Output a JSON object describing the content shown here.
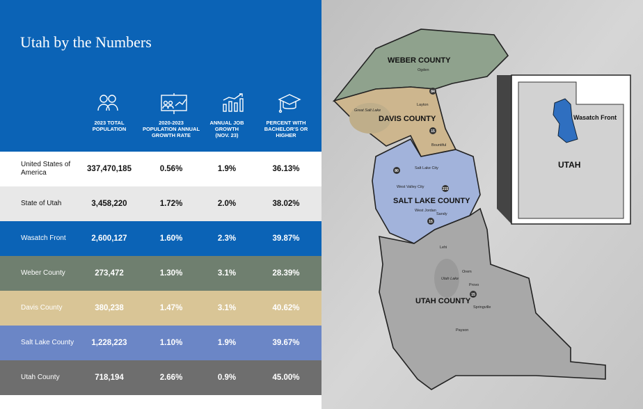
{
  "header": {
    "title": "Utah by the Numbers"
  },
  "table": {
    "columns": [
      [
        "2023 TOTAL",
        "POPULATION"
      ],
      [
        "2020-2023",
        "POPULATION ANNUAL",
        "GROWTH RATE"
      ],
      [
        "ANNUAL JOB",
        "GROWTH",
        "(NOV. 23)"
      ],
      [
        "PERCENT WITH",
        "BACHELOR'S OR",
        "HIGHER"
      ]
    ],
    "rows": [
      [
        "United States of America",
        "337,470,185",
        "0.56%",
        "1.9%",
        "36.13%"
      ],
      [
        "State of Utah",
        "3,458,220",
        "1.72%",
        "2.0%",
        "38.02%"
      ],
      [
        "Wasatch Front",
        "2,600,127",
        "1.60%",
        "2.3%",
        "39.87%"
      ],
      [
        "Weber County",
        "273,472",
        "1.30%",
        "3.1%",
        "28.39%"
      ],
      [
        "Davis County",
        "380,238",
        "1.47%",
        "3.1%",
        "40.62%"
      ],
      [
        "Salt Lake County",
        "1,228,223",
        "1.10%",
        "1.9%",
        "39.67%"
      ],
      [
        "Utah County",
        "718,194",
        "2.66%",
        "0.9%",
        "45.00%"
      ]
    ]
  },
  "map": {
    "counties": [
      "WEBER COUNTY",
      "DAVIS COUNTY",
      "SALT LAKE COUNTY",
      "UTAH COUNTY"
    ],
    "cities": [
      "Ogden",
      "Layton",
      "Bountiful",
      "Salt Lake City",
      "West Valley City",
      "West Jordan",
      "Sandy",
      "Lehi",
      "Orem",
      "Provo",
      "Springville",
      "Payson"
    ],
    "water": [
      "Great Salt Lake",
      "Utah Lake"
    ],
    "highways": [
      "84",
      "15",
      "80",
      "215",
      "15",
      "15"
    ],
    "inset": {
      "state": "UTAH",
      "region": "Wasatch Front"
    }
  }
}
